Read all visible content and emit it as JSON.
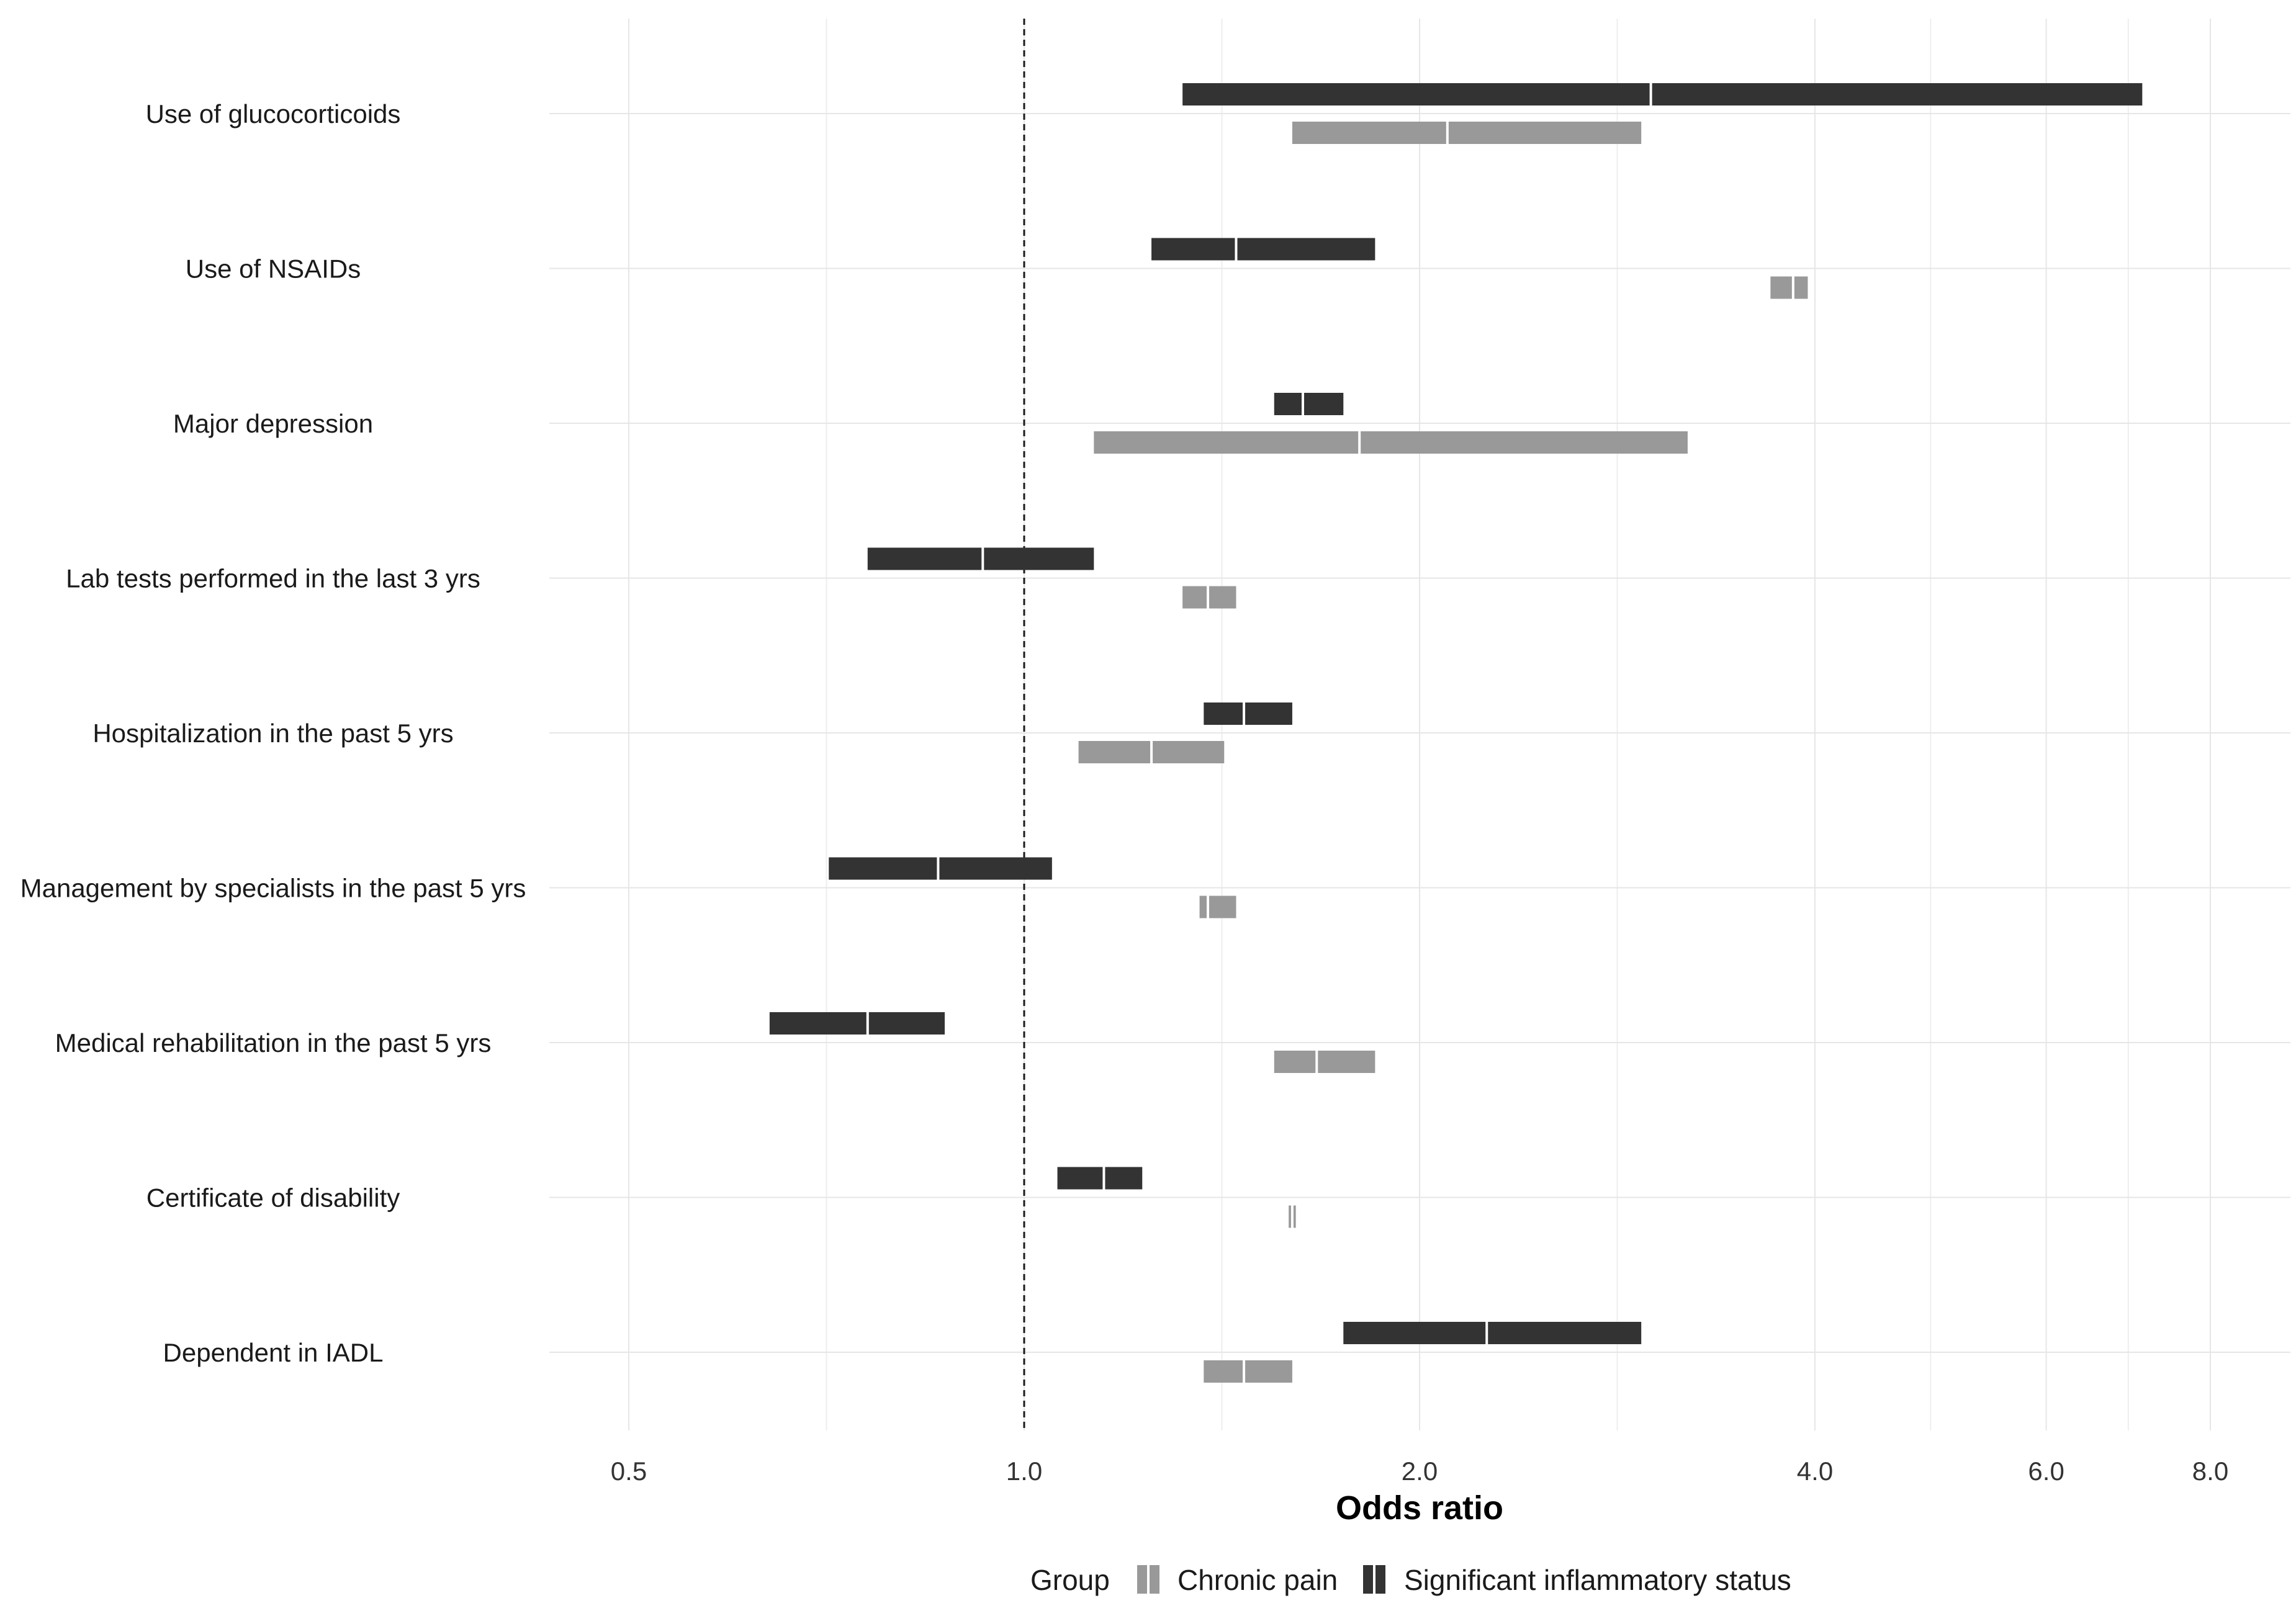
{
  "chart_data": {
    "type": "range-bar",
    "title": "",
    "xlabel": "Odds ratio",
    "ylabel": "",
    "x_scale": "log2",
    "xlim": [
      0.42,
      9.2
    ],
    "xticks": [
      0.5,
      1.0,
      2.0,
      4.0,
      6.0,
      8.0
    ],
    "xtick_labels": [
      "0.5",
      "1.0",
      "2.0",
      "4.0",
      "6.0",
      "8.0"
    ],
    "reference_line": 1.0,
    "categories": [
      "Use of glucocorticoids",
      "Use of NSAIDs",
      "Major depression",
      "Lab tests performed in the last 3 yrs",
      "Hospitalization in the past 5 yrs",
      "Management by specialists in the past 5 yrs",
      "Medical rehabilitation in the past 5 yrs",
      "Certificate of disability",
      "Dependent in IADL"
    ],
    "series": [
      {
        "name": "Significant inflammatory status",
        "color": "#333333",
        "lower": [
          1.32,
          1.25,
          1.55,
          0.76,
          1.37,
          0.71,
          0.64,
          1.06,
          1.75
        ],
        "estimate": [
          3.0,
          1.45,
          1.63,
          0.93,
          1.47,
          0.86,
          0.76,
          1.15,
          2.25
        ],
        "upper": [
          7.1,
          1.85,
          1.75,
          1.13,
          1.6,
          1.05,
          0.87,
          1.23,
          2.95
        ]
      },
      {
        "name": "Chronic pain",
        "color": "#999999",
        "lower": [
          1.6,
          3.7,
          1.13,
          1.32,
          1.1,
          1.36,
          1.55,
          1.59,
          1.37
        ],
        "estimate": [
          2.1,
          3.85,
          1.8,
          1.38,
          1.25,
          1.38,
          1.67,
          1.6,
          1.47
        ],
        "upper": [
          2.95,
          3.95,
          3.2,
          1.45,
          1.42,
          1.45,
          1.85,
          1.61,
          1.6
        ]
      }
    ],
    "legend": {
      "title": "Group",
      "position": "bottom",
      "entries": [
        "Chronic pain",
        "Significant inflammatory status"
      ]
    }
  }
}
